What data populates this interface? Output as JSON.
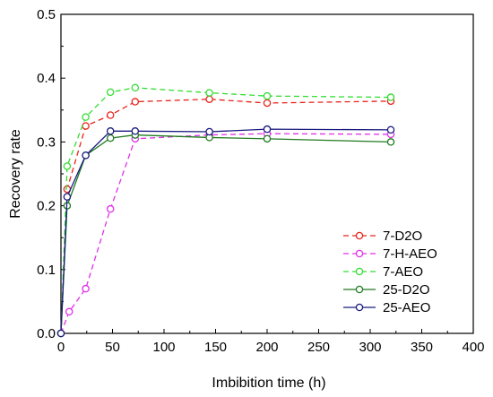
{
  "chart_data": {
    "type": "line",
    "title": "",
    "xlabel": "Imbibition time (h)",
    "ylabel": "Recovery rate",
    "xlim": [
      0,
      400
    ],
    "ylim": [
      0,
      0.5
    ],
    "xticks": [
      0,
      50,
      100,
      150,
      200,
      250,
      300,
      350,
      400
    ],
    "yticks": [
      0.0,
      0.1,
      0.2,
      0.3,
      0.4,
      0.5
    ],
    "xtick_labels": [
      "0",
      "50",
      "100",
      "150",
      "200",
      "250",
      "300",
      "350",
      "400"
    ],
    "ytick_labels": [
      "0.0",
      "0.1",
      "0.2",
      "0.3",
      "0.4",
      "0.5"
    ],
    "grid": false,
    "legend": "bottom-right",
    "series": [
      {
        "name": "7-D2O",
        "color": "#e8241a",
        "dashed": true,
        "x": [
          0,
          6,
          24,
          48,
          72,
          144,
          200,
          320
        ],
        "y": [
          0.0,
          0.226,
          0.325,
          0.342,
          0.363,
          0.367,
          0.361,
          0.364
        ]
      },
      {
        "name": "7-H-AEO",
        "color": "#e030e8",
        "dashed": true,
        "x": [
          0,
          8,
          24,
          48,
          72,
          144,
          200,
          320
        ],
        "y": [
          0.0,
          0.034,
          0.07,
          0.195,
          0.305,
          0.311,
          0.313,
          0.312
        ]
      },
      {
        "name": "7-AEO",
        "color": "#33dd33",
        "dashed": true,
        "x": [
          0,
          6,
          24,
          48,
          72,
          144,
          200,
          320
        ],
        "y": [
          0.0,
          0.262,
          0.339,
          0.378,
          0.385,
          0.377,
          0.372,
          0.37
        ]
      },
      {
        "name": "25-D2O",
        "color": "#1f7a1f",
        "dashed": false,
        "x": [
          0,
          6,
          24,
          48,
          72,
          144,
          200,
          320
        ],
        "y": [
          0.0,
          0.2,
          0.279,
          0.306,
          0.311,
          0.307,
          0.305,
          0.3
        ]
      },
      {
        "name": "25-AEO",
        "color": "#1a1a80",
        "dashed": false,
        "x": [
          0,
          6,
          24,
          48,
          72,
          144,
          200,
          320
        ],
        "y": [
          0.0,
          0.214,
          0.279,
          0.317,
          0.317,
          0.316,
          0.32,
          0.319
        ]
      }
    ]
  }
}
